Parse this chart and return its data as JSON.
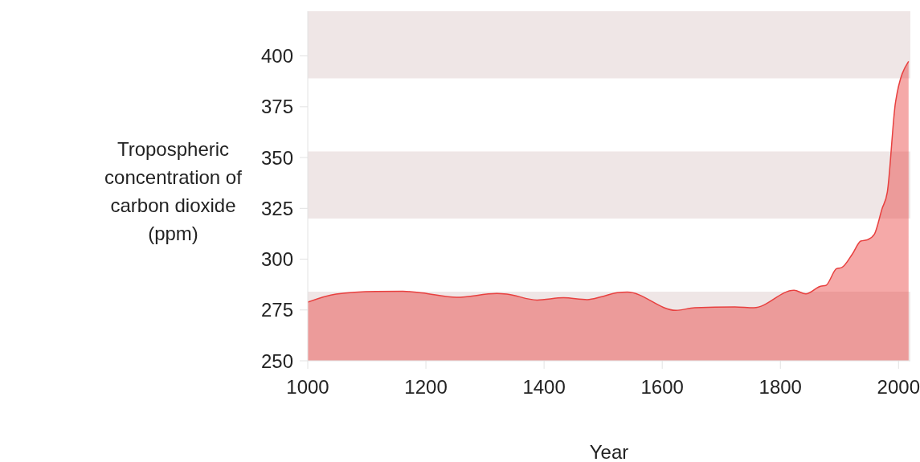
{
  "chart_data": {
    "type": "area",
    "xlabel": "Year",
    "ylabel": "Tropospheric concentration of carbon dioxide (ppm)",
    "x": [
      1000,
      1048,
      1116,
      1161,
      1193,
      1252,
      1320,
      1337,
      1388,
      1433,
      1473,
      1496,
      1524,
      1541,
      1623,
      1655,
      1723,
      1755,
      1823,
      1843,
      1868,
      1877,
      1895,
      1904,
      1922,
      1936,
      1948,
      1959,
      1972,
      1981,
      1995,
      2017
    ],
    "series": [
      {
        "color": "#e8403f",
        "values": [
          278.8,
          282.8,
          284.1,
          284.2,
          283.4,
          281.2,
          283.1,
          282.8,
          279.9,
          281,
          280.1,
          281.4,
          283.5,
          283.8,
          274.8,
          276.1,
          276.5,
          276.1,
          284.7,
          282.9,
          286.7,
          287.1,
          295.3,
          295.9,
          302.6,
          308.9,
          309.6,
          312.2,
          324.7,
          333,
          377.5,
          397.3
        ]
      }
    ],
    "xlim": [
      1000,
      2020
    ],
    "xticks": [
      1000,
      1200,
      1400,
      1600,
      1800,
      2000
    ],
    "ylim": [
      250,
      422
    ],
    "yticks": [
      250,
      275,
      300,
      325,
      350,
      375,
      400
    ],
    "bands": [
      {
        "axis": "y",
        "from": 250,
        "to": 284,
        "color": "#efe6e6"
      },
      {
        "axis": "y",
        "from": 320,
        "to": 353,
        "color": "#efe6e6"
      },
      {
        "axis": "y",
        "from": 389,
        "to": 422,
        "color": "#efe6e6"
      }
    ]
  }
}
